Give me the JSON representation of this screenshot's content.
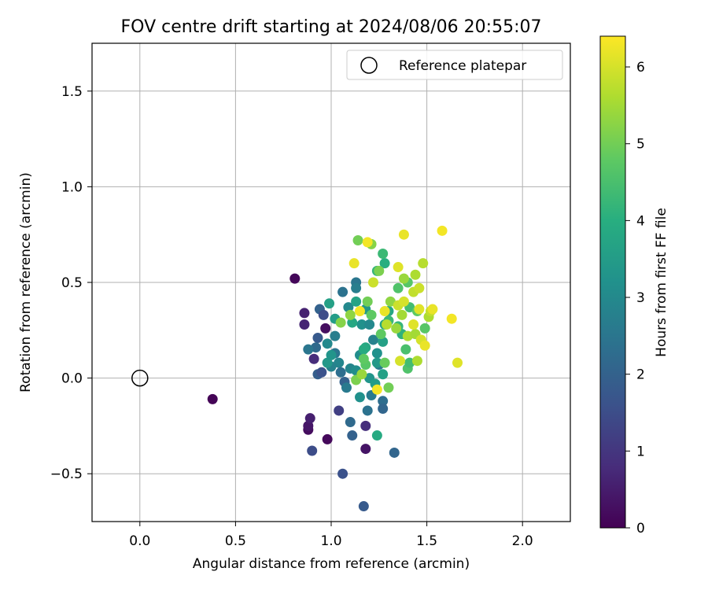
{
  "chart_data": {
    "type": "scatter",
    "title": "FOV centre drift starting at 2024/08/06 20:55:07",
    "xlabel": "Angular distance from reference (arcmin)",
    "ylabel": "Rotation from reference (arcmin)",
    "xlim": [
      -0.25,
      2.25
    ],
    "ylim": [
      -0.75,
      1.75
    ],
    "xticks": [
      0.0,
      0.5,
      1.0,
      1.5,
      2.0
    ],
    "xtick_labels": [
      "0.0",
      "0.5",
      "1.0",
      "1.5",
      "2.0"
    ],
    "yticks": [
      -0.5,
      0.0,
      0.5,
      1.0,
      1.5
    ],
    "ytick_labels": [
      "−0.5",
      "0.0",
      "0.5",
      "1.0",
      "1.5"
    ],
    "grid": true,
    "legend": {
      "placement": "top-right",
      "entries": [
        "Reference platepar"
      ]
    },
    "reference_point": {
      "x": 0.0,
      "y": 0.0,
      "label": "Reference platepar"
    },
    "colorbar": {
      "label": "Hours from first FF file",
      "colormap": "viridis",
      "range": [
        0,
        6.4
      ],
      "ticks": [
        0,
        1,
        2,
        3,
        4,
        5,
        6
      ],
      "tick_labels": [
        "0",
        "1",
        "2",
        "3",
        "4",
        "5",
        "6"
      ]
    },
    "points": [
      [
        0.38,
        -0.11,
        0.05
      ],
      [
        0.81,
        0.52,
        0.1
      ],
      [
        0.88,
        -0.27,
        0.2
      ],
      [
        0.97,
        0.26,
        0.25
      ],
      [
        0.98,
        -0.32,
        0.15
      ],
      [
        0.88,
        -0.25,
        0.4
      ],
      [
        0.89,
        -0.21,
        0.55
      ],
      [
        0.86,
        0.34,
        0.6
      ],
      [
        0.86,
        0.28,
        0.65
      ],
      [
        0.91,
        0.1,
        0.8
      ],
      [
        1.18,
        -0.37,
        0.35
      ],
      [
        1.18,
        -0.25,
        0.85
      ],
      [
        1.04,
        -0.17,
        1.2
      ],
      [
        0.9,
        -0.38,
        1.5
      ],
      [
        1.06,
        -0.5,
        1.6
      ],
      [
        1.17,
        -0.67,
        1.8
      ],
      [
        1.33,
        -0.39,
        2.1
      ],
      [
        0.93,
        0.02,
        1.9
      ],
      [
        0.95,
        0.03,
        1.6
      ],
      [
        0.93,
        0.21,
        1.8
      ],
      [
        0.94,
        0.36,
        2.0
      ],
      [
        0.92,
        0.16,
        2.2
      ],
      [
        0.88,
        0.15,
        2.5
      ],
      [
        0.96,
        0.33,
        1.5
      ],
      [
        1.11,
        -0.3,
        2.0
      ],
      [
        1.19,
        -0.17,
        2.4
      ],
      [
        1.27,
        -0.12,
        2.3
      ],
      [
        1.27,
        -0.16,
        2.1
      ],
      [
        1.21,
        -0.09,
        2.6
      ],
      [
        1.1,
        -0.23,
        2.2
      ],
      [
        1.06,
        0.45,
        2.4
      ],
      [
        1.13,
        0.5,
        2.5
      ],
      [
        1.13,
        0.47,
        2.7
      ],
      [
        1.09,
        0.37,
        3.0
      ],
      [
        1.02,
        0.22,
        2.7
      ],
      [
        1.04,
        0.08,
        2.9
      ],
      [
        1.0,
        0.06,
        2.8
      ],
      [
        1.02,
        0.13,
        2.5
      ],
      [
        1.05,
        0.03,
        2.3
      ],
      [
        1.07,
        -0.02,
        2.0
      ],
      [
        1.08,
        -0.05,
        2.6
      ],
      [
        1.1,
        0.05,
        2.9
      ],
      [
        1.15,
        0.12,
        3.1
      ],
      [
        1.16,
        0.28,
        3.2
      ],
      [
        1.18,
        0.36,
        3.4
      ],
      [
        1.2,
        0.28,
        3.0
      ],
      [
        1.22,
        0.2,
        2.8
      ],
      [
        1.24,
        0.13,
        3.2
      ],
      [
        1.25,
        0.07,
        2.6
      ],
      [
        1.13,
        0.04,
        3.1
      ],
      [
        1.15,
        -0.1,
        3.2
      ],
      [
        1.2,
        0.0,
        3.3
      ],
      [
        1.23,
        -0.03,
        3.5
      ],
      [
        1.27,
        0.02,
        3.6
      ],
      [
        1.24,
        0.08,
        3.4
      ],
      [
        1.27,
        0.19,
        3.6
      ],
      [
        1.28,
        0.28,
        3.7
      ],
      [
        1.3,
        0.35,
        3.8
      ],
      [
        0.98,
        0.18,
        3.0
      ],
      [
        0.98,
        0.08,
        3.4
      ],
      [
        1.0,
        0.12,
        3.3
      ],
      [
        0.99,
        0.39,
        3.6
      ],
      [
        1.02,
        0.31,
        3.5
      ],
      [
        1.11,
        0.29,
        3.8
      ],
      [
        1.13,
        0.4,
        3.7
      ],
      [
        1.18,
        0.16,
        3.8
      ],
      [
        1.17,
        0.15,
        3.9
      ],
      [
        1.24,
        -0.3,
        3.9
      ],
      [
        1.24,
        0.56,
        4.2
      ],
      [
        1.28,
        0.6,
        4.0
      ],
      [
        1.27,
        0.65,
        4.3
      ],
      [
        1.3,
        0.3,
        4.3
      ],
      [
        1.35,
        0.27,
        4.2
      ],
      [
        1.37,
        0.23,
        4.1
      ],
      [
        1.39,
        0.15,
        4.5
      ],
      [
        1.4,
        0.05,
        4.6
      ],
      [
        1.41,
        0.08,
        4.4
      ],
      [
        1.35,
        0.47,
        4.6
      ],
      [
        1.4,
        0.5,
        4.7
      ],
      [
        1.41,
        0.37,
        4.4
      ],
      [
        1.45,
        0.35,
        4.8
      ],
      [
        1.49,
        0.26,
        4.7
      ],
      [
        1.18,
        0.07,
        4.7
      ],
      [
        1.17,
        0.1,
        4.8
      ],
      [
        1.21,
        0.33,
        4.8
      ],
      [
        1.26,
        0.23,
        4.8
      ],
      [
        1.28,
        0.08,
        4.9
      ],
      [
        1.3,
        -0.05,
        5.0
      ],
      [
        1.19,
        0.4,
        5.0
      ],
      [
        1.25,
        0.56,
        5.1
      ],
      [
        1.14,
        0.72,
        5.0
      ],
      [
        1.21,
        0.7,
        5.2
      ],
      [
        1.13,
        -0.01,
        5.1
      ],
      [
        1.1,
        0.33,
        5.3
      ],
      [
        1.05,
        0.29,
        5.2
      ],
      [
        1.31,
        0.4,
        5.3
      ],
      [
        1.34,
        0.26,
        5.4
      ],
      [
        1.37,
        0.33,
        5.5
      ],
      [
        1.38,
        0.52,
        5.4
      ],
      [
        1.4,
        0.22,
        5.6
      ],
      [
        1.44,
        0.23,
        5.5
      ],
      [
        1.47,
        0.2,
        5.7
      ],
      [
        1.44,
        0.54,
        5.6
      ],
      [
        1.48,
        0.6,
        5.7
      ],
      [
        1.43,
        0.45,
        5.8
      ],
      [
        1.46,
        0.47,
        5.9
      ],
      [
        1.51,
        0.32,
        5.6
      ],
      [
        1.52,
        0.35,
        5.8
      ],
      [
        1.45,
        0.09,
        5.6
      ],
      [
        1.36,
        0.09,
        6.0
      ],
      [
        1.35,
        0.38,
        5.9
      ],
      [
        1.38,
        0.4,
        6.0
      ],
      [
        1.43,
        0.28,
        6.1
      ],
      [
        1.47,
        0.2,
        6.0
      ],
      [
        1.49,
        0.17,
        6.2
      ],
      [
        1.46,
        0.36,
        6.1
      ],
      [
        1.53,
        0.36,
        6.2
      ],
      [
        1.63,
        0.31,
        6.3
      ],
      [
        1.66,
        0.08,
        6.1
      ],
      [
        1.58,
        0.77,
        6.3
      ],
      [
        1.38,
        0.75,
        6.2
      ],
      [
        1.12,
        0.6,
        6.2
      ],
      [
        1.19,
        0.71,
        6.3
      ],
      [
        1.15,
        0.35,
        6.3
      ],
      [
        1.28,
        0.35,
        6.2
      ],
      [
        1.35,
        0.58,
        6.1
      ],
      [
        1.24,
        -0.06,
        6.3
      ],
      [
        1.22,
        0.5,
        5.9
      ],
      [
        1.29,
        0.28,
        5.7
      ],
      [
        1.16,
        0.02,
        5.4
      ]
    ]
  }
}
